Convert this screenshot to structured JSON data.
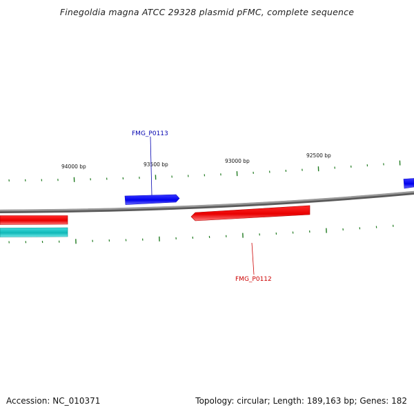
{
  "title": "Finegoldia magna ATCC 29328 plasmid pFMC, complete sequence",
  "footer": {
    "accession": "Accession: NC_010371",
    "summary": "Topology: circular; Length: 189,163 bp; Genes: 182"
  },
  "ruler": {
    "labels": [
      "94000 bp",
      "93500 bp",
      "93000 bp",
      "92500 bp"
    ],
    "tick_color": "#1f7a1f"
  },
  "genes": [
    {
      "name": "FMG_P0113",
      "strand": "+",
      "color": "#0000ee",
      "label_color": "#0000b0"
    },
    {
      "name": "FMG_P0112",
      "strand": "-",
      "color": "#ee0000",
      "label_color": "#cc0000"
    }
  ],
  "colors": {
    "backbone": "#8a8a8a",
    "forward_gene": "#0000ee",
    "reverse_gene": "#ee0000",
    "other_feature": "#20c0c0"
  }
}
